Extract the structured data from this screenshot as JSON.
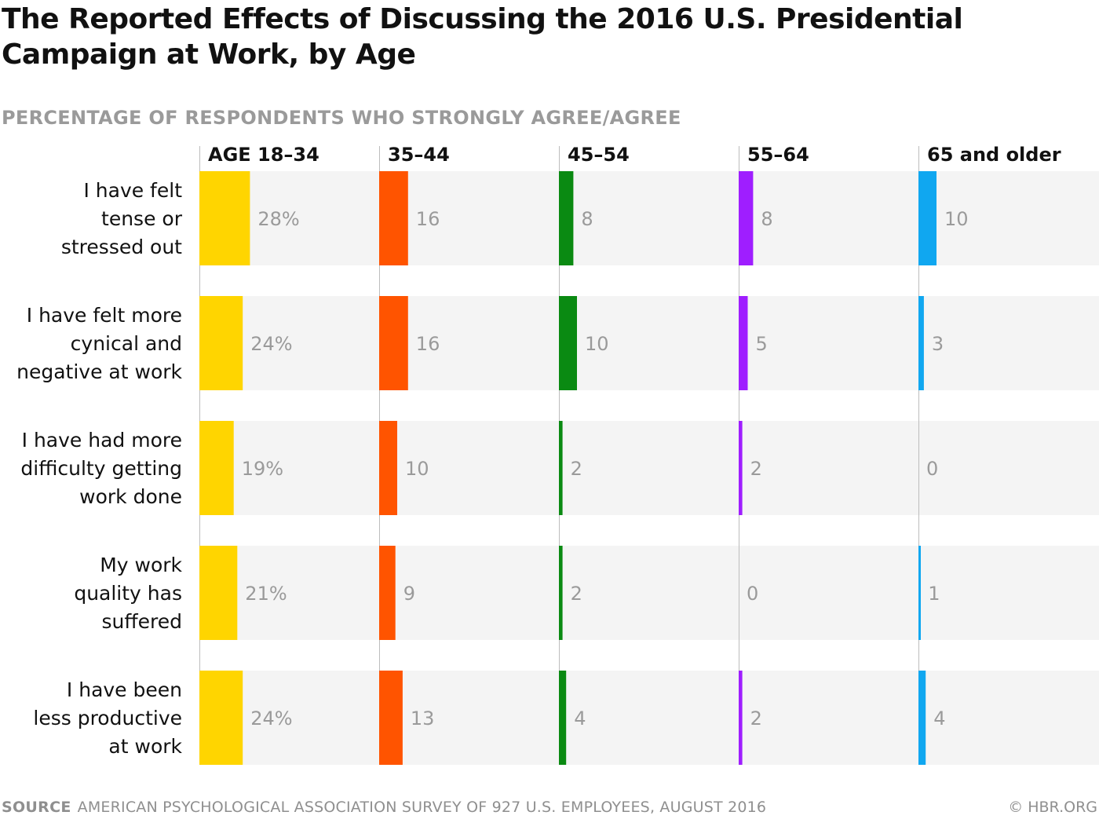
{
  "title": "The Reported Effects of Discussing the 2016 U.S. Presidential Campaign at Work, by Age",
  "subtitle": "PERCENTAGE OF RESPONDENTS WHO STRONGLY AGREE/AGREE",
  "footer": {
    "source_label": "SOURCE",
    "source_text": "AMERICAN PSYCHOLOGICAL ASSOCIATION SURVEY OF 927 U.S. EMPLOYEES, AUGUST 2016",
    "credit": "© HBR.ORG"
  },
  "chart_data": {
    "type": "bar",
    "orientation": "horizontal",
    "layout": "small-multiples",
    "title": "The Reported Effects of Discussing the 2016 U.S. Presidential Campaign at Work, by Age",
    "subtitle": "PERCENTAGE OF RESPONDENTS WHO STRONGLY AGREE/AGREE",
    "unit": "%",
    "xlim": [
      0,
      100
    ],
    "categories": [
      [
        "I have felt",
        "tense or",
        "stressed out"
      ],
      [
        "I have felt more",
        "cynical and",
        "negative at work"
      ],
      [
        "I have had more",
        "difficulty getting",
        "work done"
      ],
      [
        "My work",
        "quality has",
        "suffered"
      ],
      [
        "I have been",
        "less productive",
        "at work"
      ]
    ],
    "series": [
      {
        "name": "AGE 18–34",
        "color": "#ffd500",
        "values": [
          28,
          24,
          19,
          21,
          24
        ],
        "labels": [
          "28%",
          "24%",
          "19%",
          "21%",
          "24%"
        ]
      },
      {
        "name": "35–44",
        "color": "#ff5400",
        "values": [
          16,
          16,
          10,
          9,
          13
        ],
        "labels": [
          "16",
          "16",
          "10",
          "9",
          "13"
        ]
      },
      {
        "name": "45–54",
        "color": "#0a8a12",
        "values": [
          8,
          10,
          2,
          2,
          4
        ],
        "labels": [
          "8",
          "10",
          "2",
          "2",
          "4"
        ]
      },
      {
        "name": "55–64",
        "color": "#9f1eff",
        "values": [
          8,
          5,
          2,
          0,
          2
        ],
        "labels": [
          "8",
          "5",
          "2",
          "0",
          "2"
        ]
      },
      {
        "name": "65 and older",
        "color": "#10a7f0",
        "values": [
          10,
          3,
          0,
          1,
          4
        ],
        "labels": [
          "10",
          "3",
          "0",
          "1",
          "4"
        ]
      }
    ]
  }
}
